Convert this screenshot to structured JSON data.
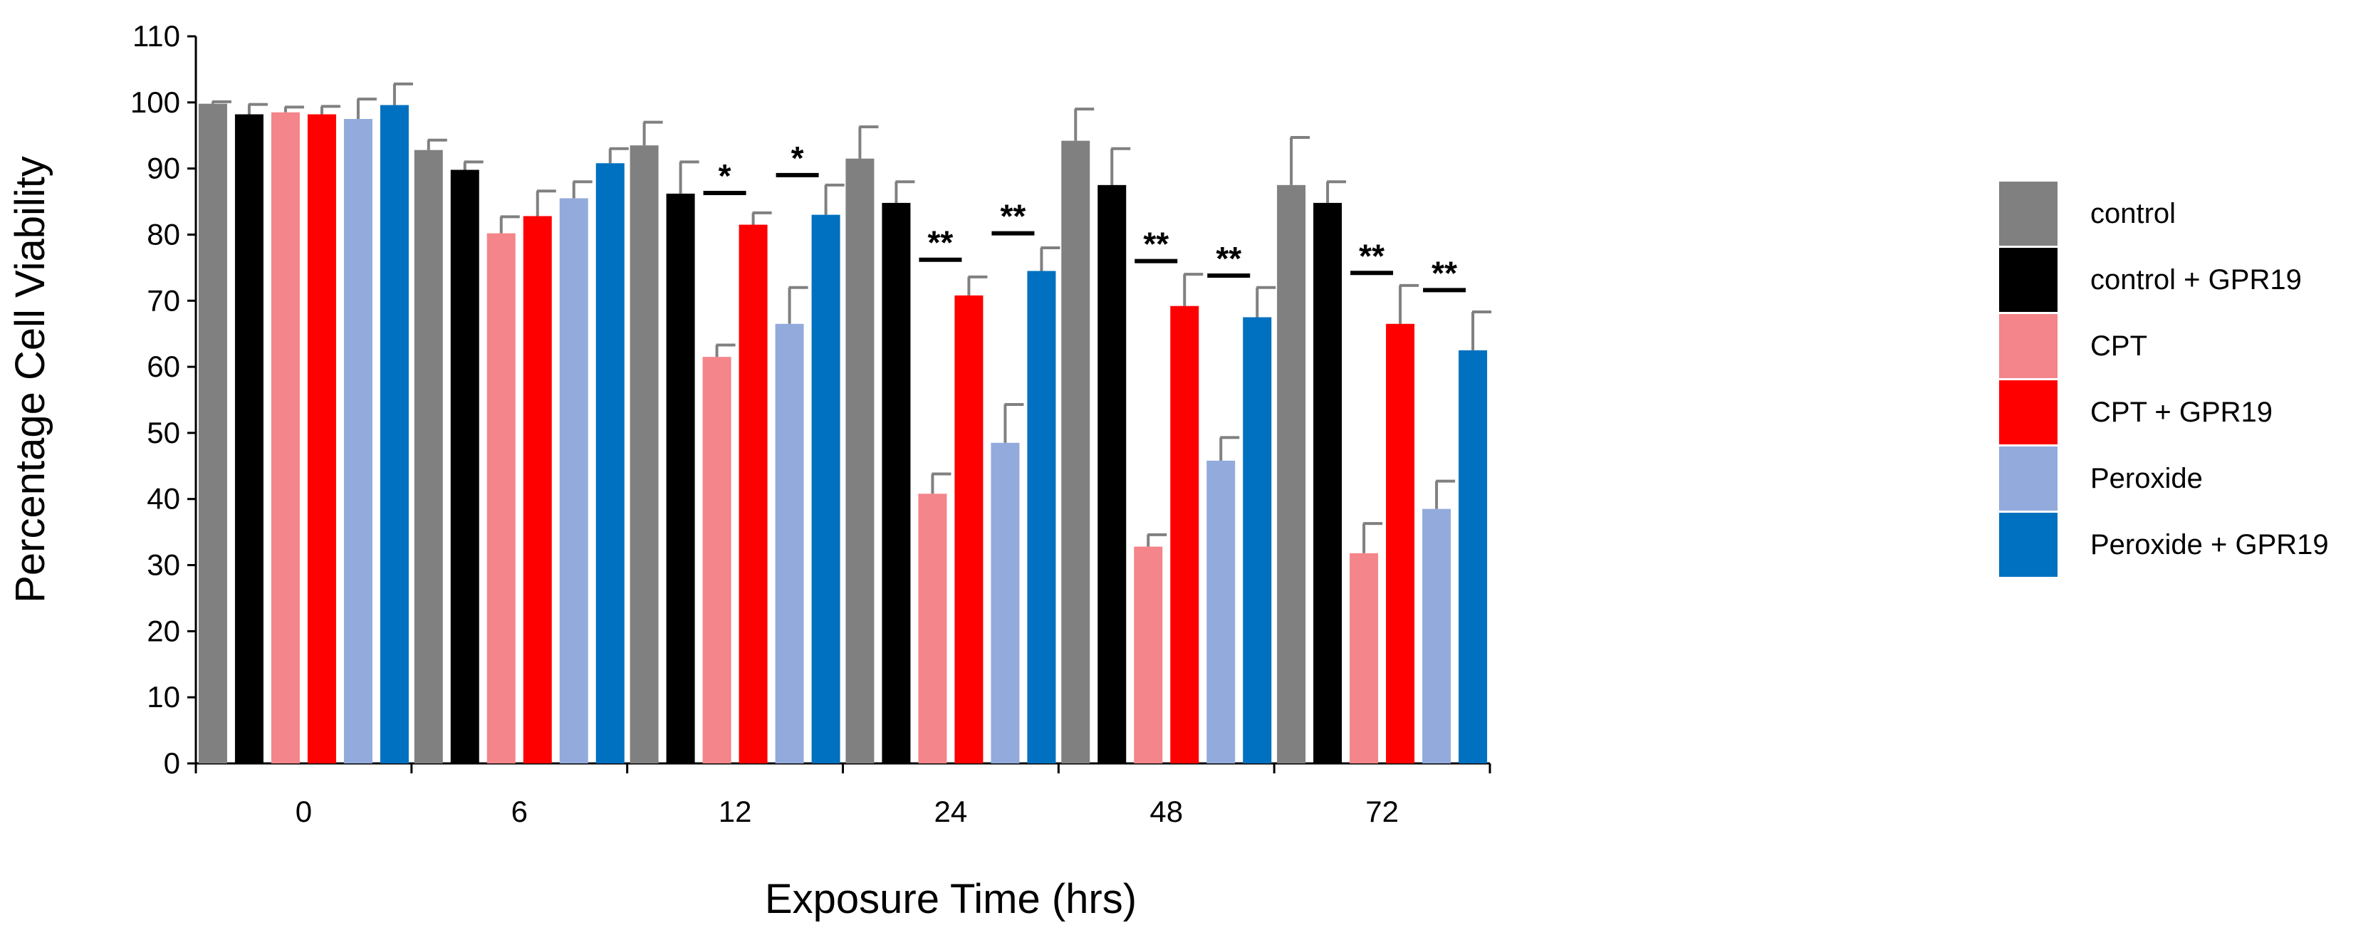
{
  "chart_data": {
    "type": "bar",
    "title": "",
    "xlabel": "Exposure Time (hrs)",
    "ylabel": "Percentage Cell Viability",
    "ylim": [
      0,
      110
    ],
    "yticks": [
      "0",
      "10",
      "20",
      "30",
      "40",
      "50",
      "60",
      "70",
      "80",
      "90",
      "100",
      "110"
    ],
    "categories": [
      "0",
      "6",
      "12",
      "24",
      "48",
      "72"
    ],
    "legend_position": "right",
    "series": [
      {
        "name": "control",
        "color": "#808080",
        "values": [
          99.8,
          92.8,
          93.5,
          91.5,
          94.2,
          87.5
        ],
        "errors": [
          0.3,
          1.5,
          3.5,
          4.8,
          4.8,
          7.2
        ]
      },
      {
        "name": "control + GPR19",
        "color": "#000000",
        "values": [
          98.2,
          89.8,
          86.2,
          84.8,
          87.5,
          84.8
        ],
        "errors": [
          1.5,
          1.2,
          4.8,
          3.2,
          5.5,
          3.2
        ]
      },
      {
        "name": "CPT",
        "color": "#f4858a",
        "values": [
          98.5,
          80.2,
          61.5,
          40.8,
          32.8,
          31.8
        ],
        "errors": [
          0.8,
          2.5,
          1.8,
          3.0,
          1.8,
          4.5
        ]
      },
      {
        "name": "CPT + GPR19",
        "color": "#ff0000",
        "values": [
          98.2,
          82.8,
          81.5,
          70.8,
          69.2,
          66.5
        ],
        "errors": [
          1.2,
          3.8,
          1.8,
          2.8,
          4.8,
          5.8
        ]
      },
      {
        "name": "Peroxide",
        "color": "#92aadc",
        "values": [
          97.5,
          85.5,
          66.5,
          48.5,
          45.8,
          38.5
        ],
        "errors": [
          3.0,
          2.5,
          5.5,
          5.8,
          3.5,
          4.2
        ]
      },
      {
        "name": "Peroxide + GPR19",
        "color": "#0070c0",
        "values": [
          99.6,
          90.8,
          83.0,
          74.5,
          67.5,
          62.5
        ],
        "errors": [
          3.2,
          2.2,
          4.5,
          3.5,
          4.5,
          5.8
        ]
      }
    ],
    "annotations": [
      {
        "category": "12",
        "series": "CPT + GPR19",
        "text": "*",
        "y": 86.3
      },
      {
        "category": "12",
        "series": "Peroxide + GPR19",
        "text": "*",
        "y": 89.0
      },
      {
        "category": "24",
        "series": "CPT + GPR19",
        "text": "**",
        "y": 76.2
      },
      {
        "category": "24",
        "series": "Peroxide + GPR19",
        "text": "**",
        "y": 80.2
      },
      {
        "category": "48",
        "series": "CPT + GPR19",
        "text": "**",
        "y": 76.0
      },
      {
        "category": "48",
        "series": "Peroxide + GPR19",
        "text": "**",
        "y": 73.8
      },
      {
        "category": "72",
        "series": "CPT + GPR19",
        "text": "**",
        "y": 74.2
      },
      {
        "category": "72",
        "series": "Peroxide + GPR19",
        "text": "**",
        "y": 71.6
      }
    ]
  }
}
